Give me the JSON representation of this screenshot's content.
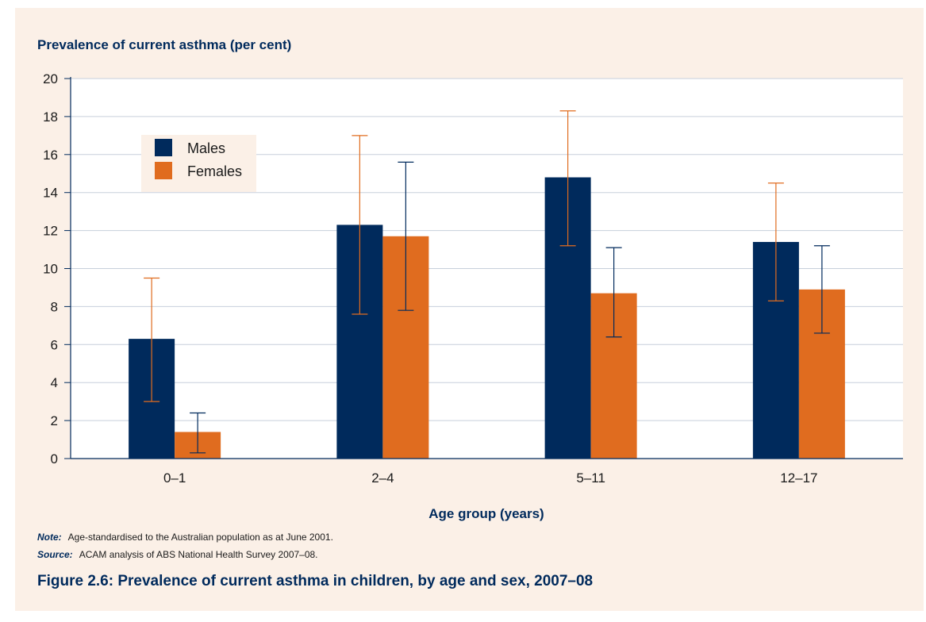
{
  "colors": {
    "males": "#002a5c",
    "females": "#e06c1f",
    "panel_bg": "#fbf0e7",
    "plot_bg": "#ffffff",
    "axis": "#002a5c",
    "grid": "#c7cfdb"
  },
  "chart_data": {
    "type": "bar",
    "ylabel": "Prevalence of current asthma (per cent)",
    "xlabel": "Age group (years)",
    "ylim": [
      0,
      20
    ],
    "yticks": [
      0,
      2,
      4,
      6,
      8,
      10,
      12,
      14,
      16,
      18,
      20
    ],
    "grid": true,
    "legend_position": "top-left",
    "categories": [
      "0–1",
      "2–4",
      "5–11",
      "12–17"
    ],
    "series": [
      {
        "name": "Males",
        "color": "#002a5c",
        "errorbar_color": "#e06c1f",
        "values": [
          6.3,
          12.3,
          14.8,
          11.4
        ],
        "error_low": [
          3.0,
          7.6,
          11.2,
          8.3
        ],
        "error_high": [
          9.5,
          17.0,
          18.3,
          14.5
        ]
      },
      {
        "name": "Females",
        "color": "#e06c1f",
        "errorbar_color": "#002a5c",
        "values": [
          1.4,
          11.7,
          8.7,
          8.9
        ],
        "error_low": [
          0.3,
          7.8,
          6.4,
          6.6
        ],
        "error_high": [
          2.4,
          15.6,
          11.1,
          11.2
        ]
      }
    ]
  },
  "notes": {
    "note_label": "Note:",
    "note_text": "Age-standardised to the Australian population as at June 2001.",
    "source_label": "Source:",
    "source_text": "ACAM analysis of ABS National Health Survey 2007–08."
  },
  "caption": "Figure 2.6: Prevalence of current asthma in children, by age and sex, 2007–08"
}
